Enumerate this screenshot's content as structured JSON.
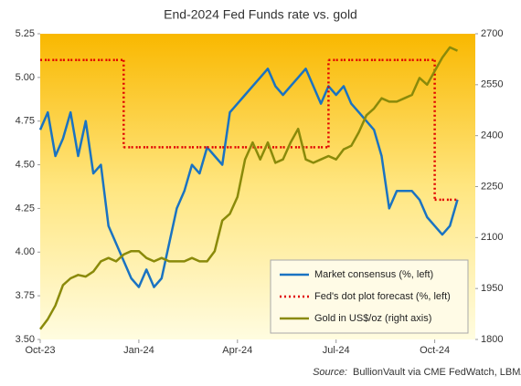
{
  "chart_data": {
    "type": "line",
    "title": "End-2024 Fed Funds rate vs. gold",
    "source_label": "Source:",
    "source": "BullionVault via CME FedWatch, LBMA",
    "categories": [
      "Oct-23",
      null,
      null,
      null,
      null,
      null,
      null,
      null,
      null,
      null,
      null,
      null,
      null,
      "Jan-24",
      null,
      null,
      null,
      null,
      null,
      null,
      null,
      null,
      null,
      null,
      null,
      null,
      "Apr-24",
      null,
      null,
      null,
      null,
      null,
      null,
      null,
      null,
      null,
      null,
      null,
      null,
      "Jul-24",
      null,
      null,
      null,
      null,
      null,
      null,
      null,
      null,
      null,
      null,
      null,
      null,
      "Oct-24",
      null,
      null,
      null,
      null,
      null
    ],
    "ylim": [
      3.5,
      5.25
    ],
    "yticks": [
      {
        "value": 3.5,
        "label": "3.50"
      },
      {
        "value": 3.75,
        "label": "3.75"
      },
      {
        "value": 4,
        "label": "4.00"
      },
      {
        "value": 4.25,
        "label": "4.25"
      },
      {
        "value": 4.5,
        "label": "4.50"
      },
      {
        "value": 4.75,
        "label": "4.75"
      },
      {
        "value": 5,
        "label": "5.00"
      },
      {
        "value": 5.25,
        "label": "5.25"
      }
    ],
    "y2lim": [
      1800,
      2700
    ],
    "y2ticks": [
      1800,
      1950,
      2100,
      2250,
      2400,
      2550,
      2700
    ],
    "grid": false,
    "legend": "lower right",
    "series": [
      {
        "name": "Market consensus (%, left)",
        "color": "#1a73c2",
        "style": "solid",
        "values": [
          4.7,
          4.8,
          4.55,
          4.65,
          4.8,
          4.55,
          4.75,
          4.45,
          4.5,
          4.15,
          4.05,
          3.95,
          3.85,
          3.8,
          3.9,
          3.8,
          3.85,
          4.05,
          4.25,
          4.35,
          4.5,
          4.45,
          4.6,
          4.55,
          4.5,
          4.8,
          4.85,
          4.9,
          4.95,
          5.0,
          5.05,
          4.95,
          4.9,
          4.95,
          5.0,
          5.05,
          4.95,
          4.85,
          4.95,
          4.9,
          4.95,
          4.85,
          4.8,
          4.75,
          4.7,
          4.55,
          4.25,
          4.35,
          4.35,
          4.35,
          4.3,
          4.2,
          4.15,
          4.1,
          4.15,
          4.3,
          null,
          null
        ]
      },
      {
        "name": "Fed's dot plot forecast (%, left)",
        "color": "#e00000",
        "style": "step",
        "values": [
          5.1,
          5.1,
          5.1,
          5.1,
          5.1,
          5.1,
          5.1,
          5.1,
          5.1,
          5.1,
          5.1,
          4.6,
          4.6,
          4.6,
          4.6,
          4.6,
          4.6,
          4.6,
          4.6,
          4.6,
          4.6,
          4.6,
          4.6,
          4.6,
          4.6,
          4.6,
          4.6,
          4.6,
          4.6,
          4.6,
          4.6,
          4.6,
          4.6,
          4.6,
          4.6,
          4.6,
          4.6,
          4.6,
          5.1,
          5.1,
          5.1,
          5.1,
          5.1,
          5.1,
          5.1,
          5.1,
          5.1,
          5.1,
          5.1,
          5.1,
          5.1,
          5.1,
          4.3,
          4.3,
          4.3,
          4.3,
          null,
          null
        ]
      },
      {
        "name": "Gold in US$/oz (right axis)",
        "color": "#8a8a0a",
        "style": "solid",
        "axis": "y2",
        "values": [
          1830,
          1860,
          1900,
          1960,
          1980,
          1990,
          1985,
          2000,
          2030,
          2040,
          2030,
          2050,
          2060,
          2060,
          2040,
          2030,
          2040,
          2030,
          2030,
          2030,
          2040,
          2030,
          2030,
          2060,
          2150,
          2170,
          2220,
          2330,
          2380,
          2330,
          2380,
          2320,
          2330,
          2380,
          2420,
          2330,
          2320,
          2330,
          2340,
          2330,
          2360,
          2370,
          2410,
          2460,
          2480,
          2510,
          2500,
          2500,
          2510,
          2520,
          2570,
          2550,
          2590,
          2630,
          2660,
          2650,
          null,
          null
        ]
      }
    ]
  }
}
